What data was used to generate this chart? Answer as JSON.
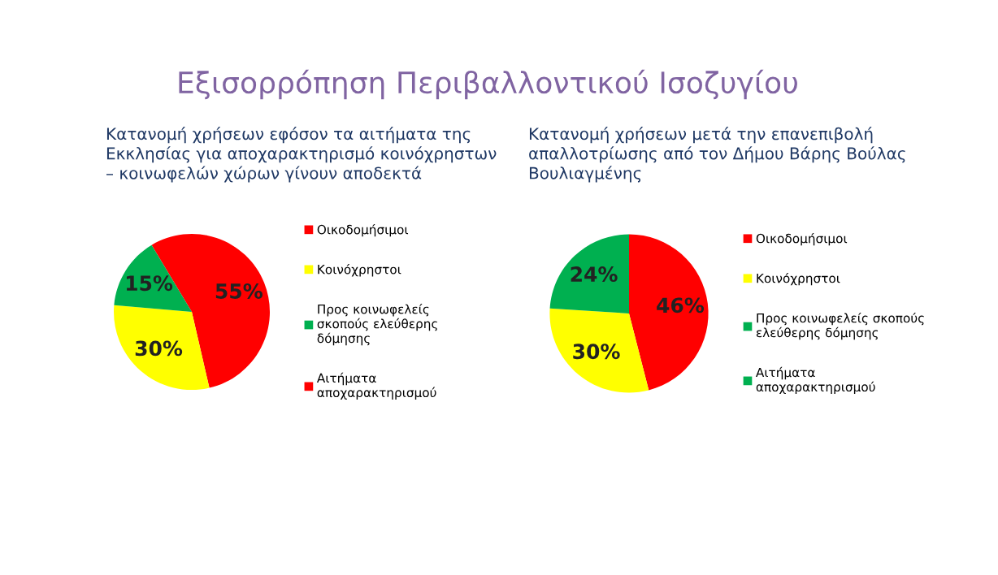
{
  "chart_data": [
    {
      "type": "pie",
      "title": "Εξισορρόπηση Περιβαλλοντικού Ισοζυγίου",
      "subtitle": "Κατανομή χρήσεων εφόσον τα αιτήματα της\nΕκκλησίας για αποχαρακτηρισμό κοινόχρηστων\n– κοινωφελών χώρων γίνουν αποδεκτά",
      "categories": [
        "Οικοδομήσιμοι",
        "Κοινόχρηστοι",
        "Προς κοινωφελείς\nσκοπούς ελεύθερης\nδόμησης",
        "Αιτήματα\nαποχαρακτηρισμού"
      ],
      "values": [
        55,
        30,
        15,
        0
      ],
      "value_labels": [
        "55%",
        "30%",
        "15%",
        null
      ],
      "colors": [
        "#ff0000",
        "#ffff00",
        "#00b050",
        "#ff0000"
      ],
      "legend": "right"
    },
    {
      "type": "pie",
      "subtitle": "Κατανομή χρήσεων μετά την επανεπιβολή\nαπαλλοτρίωσης από τον Δήμου Βάρης Βούλας\nΒουλιαγμένης",
      "categories": [
        "Οικοδομήσιμοι",
        "Κοινόχρηστοι",
        "Προς κοινωφελείς σκοπούς\nελεύθερης δόμησης",
        "Αιτήματα\nαποχαρακτηρισμού"
      ],
      "values": [
        46,
        30,
        24,
        0
      ],
      "value_labels": [
        "46%",
        "30%",
        "24%",
        null
      ],
      "colors": [
        "#ff0000",
        "#ffff00",
        "#00b050",
        "#00b050"
      ],
      "legend": "right"
    }
  ]
}
